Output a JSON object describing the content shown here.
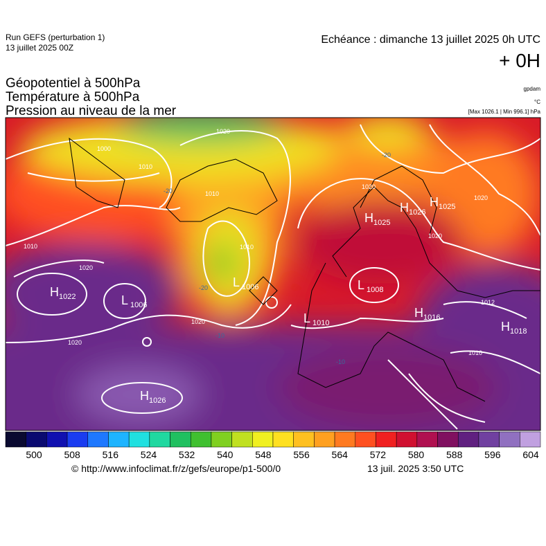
{
  "header": {
    "run": "Run GEFS (perturbation 1)",
    "run_date": "13 juillet 2025 00Z",
    "echeance": "Echéance : dimanche 13 juillet 2025 0h UTC",
    "offset": "+ 0H"
  },
  "fields": [
    "Géopotentiel à 500hPa",
    "Température à 500hPa",
    "Pression au niveau de la mer"
  ],
  "units": [
    "gpdam",
    "°C",
    "[Max 1026.1 | Min 996.1] hPa"
  ],
  "pressure_centers": [
    {
      "type": "H",
      "value": 1022
    },
    {
      "type": "L",
      "value": 1006
    },
    {
      "type": "H",
      "value": 1026
    },
    {
      "type": "L",
      "value": 1006
    },
    {
      "type": "H",
      "value": 1025
    },
    {
      "type": "H",
      "value": 1026
    },
    {
      "type": "H",
      "value": 1025
    },
    {
      "type": "L",
      "value": 1008
    },
    {
      "type": "L",
      "value": 1010
    },
    {
      "type": "H",
      "value": 1016
    },
    {
      "type": "H",
      "value": 1018
    }
  ],
  "contour_labels": [
    1000,
    1010,
    1010,
    1010,
    1020,
    1020,
    1020,
    1020,
    1020,
    1020,
    1012,
    1010,
    1020,
    1010,
    -20,
    -20,
    -20,
    -10,
    -10
  ],
  "colorbar": {
    "colors": [
      "#0a0a30",
      "#0a0a70",
      "#1010b0",
      "#1a3cf0",
      "#1e78ff",
      "#1eb4ff",
      "#20e0e0",
      "#20d8a0",
      "#20c060",
      "#40c030",
      "#80d020",
      "#c0e020",
      "#f0f020",
      "#ffe020",
      "#ffc020",
      "#ffa020",
      "#ff7a20",
      "#ff5020",
      "#f02020",
      "#d01030",
      "#b01050",
      "#801060",
      "#602080",
      "#7040a0",
      "#9070c0",
      "#c0a0e0"
    ],
    "ticks": [
      500,
      508,
      516,
      524,
      532,
      540,
      548,
      556,
      564,
      572,
      580,
      588,
      596,
      604
    ]
  },
  "footer": {
    "url": "© http://www.infoclimat.fr/z/gefs/europe/p1-500/0",
    "time": "13 juil. 2025  3:50 UTC"
  }
}
